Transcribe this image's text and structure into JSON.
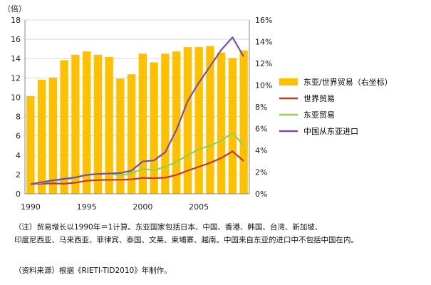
{
  "chart_data": {
    "type": "bar+line",
    "y_unit_label": "（倍）",
    "x": [
      1990,
      1991,
      1992,
      1993,
      1994,
      1995,
      1996,
      1997,
      1998,
      1999,
      2000,
      2001,
      2002,
      2003,
      2004,
      2005,
      2006,
      2007,
      2008,
      2009
    ],
    "x_tick_labels": [
      "1990",
      "1995",
      "2000",
      "2005"
    ],
    "left_axis": {
      "ylim": [
        0,
        18
      ],
      "ticks": [
        "0",
        "2",
        "4",
        "6",
        "8",
        "10",
        "12",
        "14",
        "16",
        "18"
      ]
    },
    "right_axis": {
      "ylim": [
        0,
        16
      ],
      "ticks": [
        "0%",
        "2%",
        "4%",
        "6%",
        "8%",
        "10%",
        "12%",
        "14%",
        "16%"
      ]
    },
    "bar_series": {
      "name": "东亚/世界贸易（右坐标）",
      "color": "#ffc000",
      "axis": "right",
      "values": [
        9.0,
        10.5,
        10.7,
        12.3,
        12.8,
        13.1,
        12.8,
        12.6,
        10.6,
        11.0,
        12.9,
        12.1,
        12.9,
        13.1,
        13.5,
        13.5,
        13.6,
        13.0,
        12.5,
        13.2
      ]
    },
    "line_series": [
      {
        "name": "世界贸易",
        "color": "#c0392b",
        "axis": "left",
        "values": [
          1.0,
          1.05,
          1.08,
          1.05,
          1.15,
          1.35,
          1.42,
          1.45,
          1.45,
          1.5,
          1.65,
          1.62,
          1.67,
          1.95,
          2.4,
          2.8,
          3.2,
          3.7,
          4.4,
          3.4
        ]
      },
      {
        "name": "东亚贸易",
        "color": "#92d050",
        "axis": "left",
        "values": [
          1.0,
          1.15,
          1.3,
          1.45,
          1.65,
          2.0,
          2.05,
          2.1,
          1.9,
          2.1,
          2.6,
          2.45,
          2.8,
          3.3,
          4.0,
          4.6,
          5.0,
          5.5,
          6.3,
          5.0
        ]
      },
      {
        "name": "中国从东亚进口",
        "color": "#7b4fa5",
        "axis": "left",
        "values": [
          1.0,
          1.2,
          1.4,
          1.55,
          1.7,
          1.95,
          2.05,
          2.1,
          2.15,
          2.4,
          3.35,
          3.45,
          4.3,
          6.6,
          9.6,
          11.5,
          13.2,
          14.9,
          16.2,
          14.2
        ]
      }
    ]
  },
  "notes": {
    "line1": "（注）贸易增长以1990年＝1计算。东亚国家包括日本、中国、香港、韩国、台湾、新加坡、",
    "line2": "印度尼西亚、马来西亚、菲律宾、泰国、文莱、柬埔寨、越南。中国来自东亚的进口中不包括中国在内。",
    "source": "（资料来源）根据《RIETI-TID2010》年制作。"
  }
}
